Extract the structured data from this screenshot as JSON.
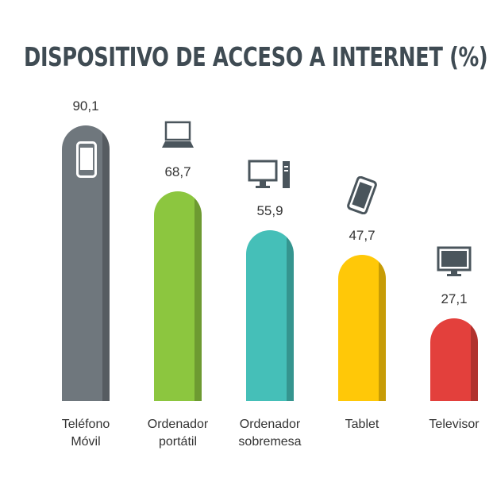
{
  "chart_data": {
    "type": "bar",
    "title": "DISPOSITIVO DE ACCESO A INTERNET (%)",
    "categories": [
      "Teléfono Móvil",
      "Ordenador portátil",
      "Ordenador sobremesa",
      "Tablet",
      "Televisor"
    ],
    "values": [
      90.1,
      68.7,
      55.9,
      47.7,
      27.1
    ],
    "value_labels": [
      "90,1",
      "68,7",
      "55,9",
      "47,7",
      "27,1"
    ],
    "colors": [
      "#6f777d",
      "#8cc63f",
      "#45bfb8",
      "#ffc808",
      "#e3403c"
    ]
  }
}
